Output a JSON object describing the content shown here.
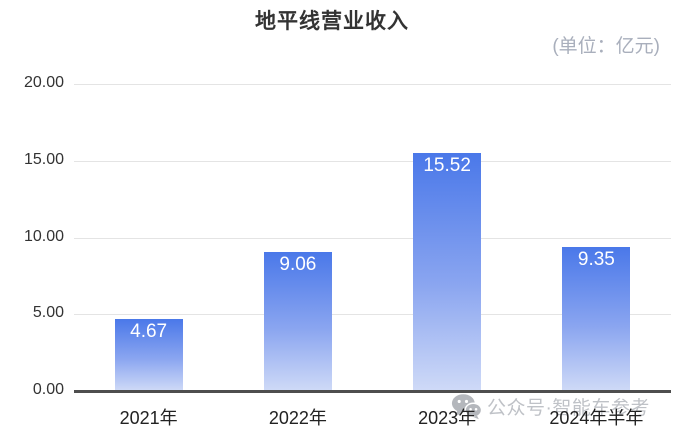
{
  "title": "地平线营业收入",
  "subtitle": "(单位：亿元)",
  "watermark": {
    "icon": "wechat-icon",
    "text": "公众号·智能车参考"
  },
  "colors": {
    "bar_gradient_top": "#4a78e9",
    "bar_gradient_bottom": "#cfdaf7",
    "axis_line": "#4e4e4e",
    "gridline": "#e4e4e4",
    "title_text": "#333333",
    "subtitle_text": "#a9afbc",
    "value_label_text": "#ffffff",
    "tick_label_text": "#333333",
    "watermark_text": "#bfc2c7"
  },
  "chart_data": {
    "type": "bar",
    "title": "地平线营业收入",
    "unit": "亿元",
    "categories": [
      "2021年",
      "2022年",
      "2023年",
      "2024年半年"
    ],
    "values": [
      4.67,
      9.06,
      15.52,
      9.35
    ],
    "value_labels": [
      "4.67",
      "9.06",
      "15.52",
      "9.35"
    ],
    "ylim": [
      0,
      20
    ],
    "ytick_values": [
      20,
      15,
      10,
      5,
      0
    ],
    "yticks": [
      "20.00",
      "15.00",
      "10.00",
      "5.00",
      "0.00"
    ],
    "grid": true,
    "legend": false,
    "value_labels_position": "inside-top",
    "bar_style": "vertical gradient blue to light"
  }
}
